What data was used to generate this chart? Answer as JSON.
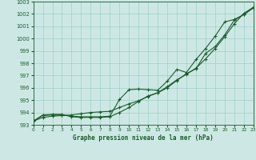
{
  "x": [
    0,
    1,
    2,
    3,
    4,
    5,
    6,
    7,
    8,
    9,
    10,
    11,
    12,
    13,
    14,
    15,
    16,
    17,
    18,
    19,
    20,
    21,
    22,
    23
  ],
  "line1": [
    993.3,
    993.8,
    993.85,
    993.85,
    993.65,
    993.6,
    993.6,
    993.6,
    993.65,
    994.0,
    994.4,
    994.9,
    995.35,
    995.6,
    996.0,
    996.6,
    997.15,
    997.55,
    998.8,
    999.35,
    1000.3,
    1001.5,
    1001.95,
    1002.5
  ],
  "line2": [
    993.3,
    993.75,
    993.8,
    993.8,
    993.7,
    993.65,
    993.65,
    993.65,
    993.7,
    995.05,
    995.85,
    995.9,
    995.85,
    995.8,
    996.55,
    997.5,
    997.25,
    998.3,
    999.2,
    1000.2,
    1001.35,
    1001.55,
    1001.95,
    1002.5
  ],
  "line3": [
    993.3,
    993.6,
    993.7,
    993.75,
    993.8,
    993.9,
    994.0,
    994.05,
    994.1,
    994.4,
    994.7,
    994.95,
    995.3,
    995.6,
    996.1,
    996.65,
    997.1,
    997.6,
    998.35,
    999.2,
    1000.15,
    1001.2,
    1002.05,
    1002.55
  ],
  "bg_color": "#cde8e4",
  "grid_color": "#9ecfca",
  "line_color": "#1a5c2a",
  "xlabel": "Graphe pression niveau de la mer (hPa)",
  "ylim": [
    993,
    1003
  ],
  "xlim": [
    0,
    23
  ],
  "yticks": [
    993,
    994,
    995,
    996,
    997,
    998,
    999,
    1000,
    1001,
    1002,
    1003
  ],
  "xticks": [
    0,
    1,
    2,
    3,
    4,
    5,
    6,
    7,
    8,
    9,
    10,
    11,
    12,
    13,
    14,
    15,
    16,
    17,
    18,
    19,
    20,
    21,
    22,
    23
  ]
}
